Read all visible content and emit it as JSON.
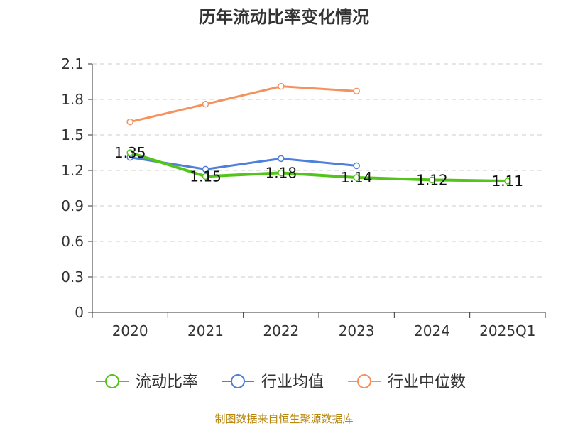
{
  "chart_data": {
    "type": "line",
    "title": "历年流动比率变化情况",
    "categories": [
      "2020",
      "2021",
      "2022",
      "2023",
      "2024",
      "2025Q1"
    ],
    "ylim": [
      0,
      2.1
    ],
    "yticks": [
      "0",
      "0.3",
      "0.6",
      "0.9",
      "1.2",
      "1.5",
      "1.8",
      "2.1"
    ],
    "ytick_values": [
      0,
      0.3,
      0.6,
      0.9,
      1.2,
      1.5,
      1.8,
      2.1
    ],
    "grid": true,
    "legend_position": "bottom",
    "series": [
      {
        "name": "流动比率",
        "color": "#52c41a",
        "values": [
          1.35,
          1.15,
          1.18,
          1.14,
          1.12,
          1.11
        ],
        "labels": [
          "1.35",
          "1.15",
          "1.18",
          "1.14",
          "1.12",
          "1.11"
        ]
      },
      {
        "name": "行业均值",
        "color": "#4e7fd9",
        "values": [
          1.31,
          1.21,
          1.3,
          1.24,
          null,
          null
        ]
      },
      {
        "name": "行业中位数",
        "color": "#f5915c",
        "values": [
          1.61,
          1.76,
          1.91,
          1.87,
          null,
          null
        ]
      }
    ]
  },
  "source_note": "制图数据来自恒生聚源数据库"
}
